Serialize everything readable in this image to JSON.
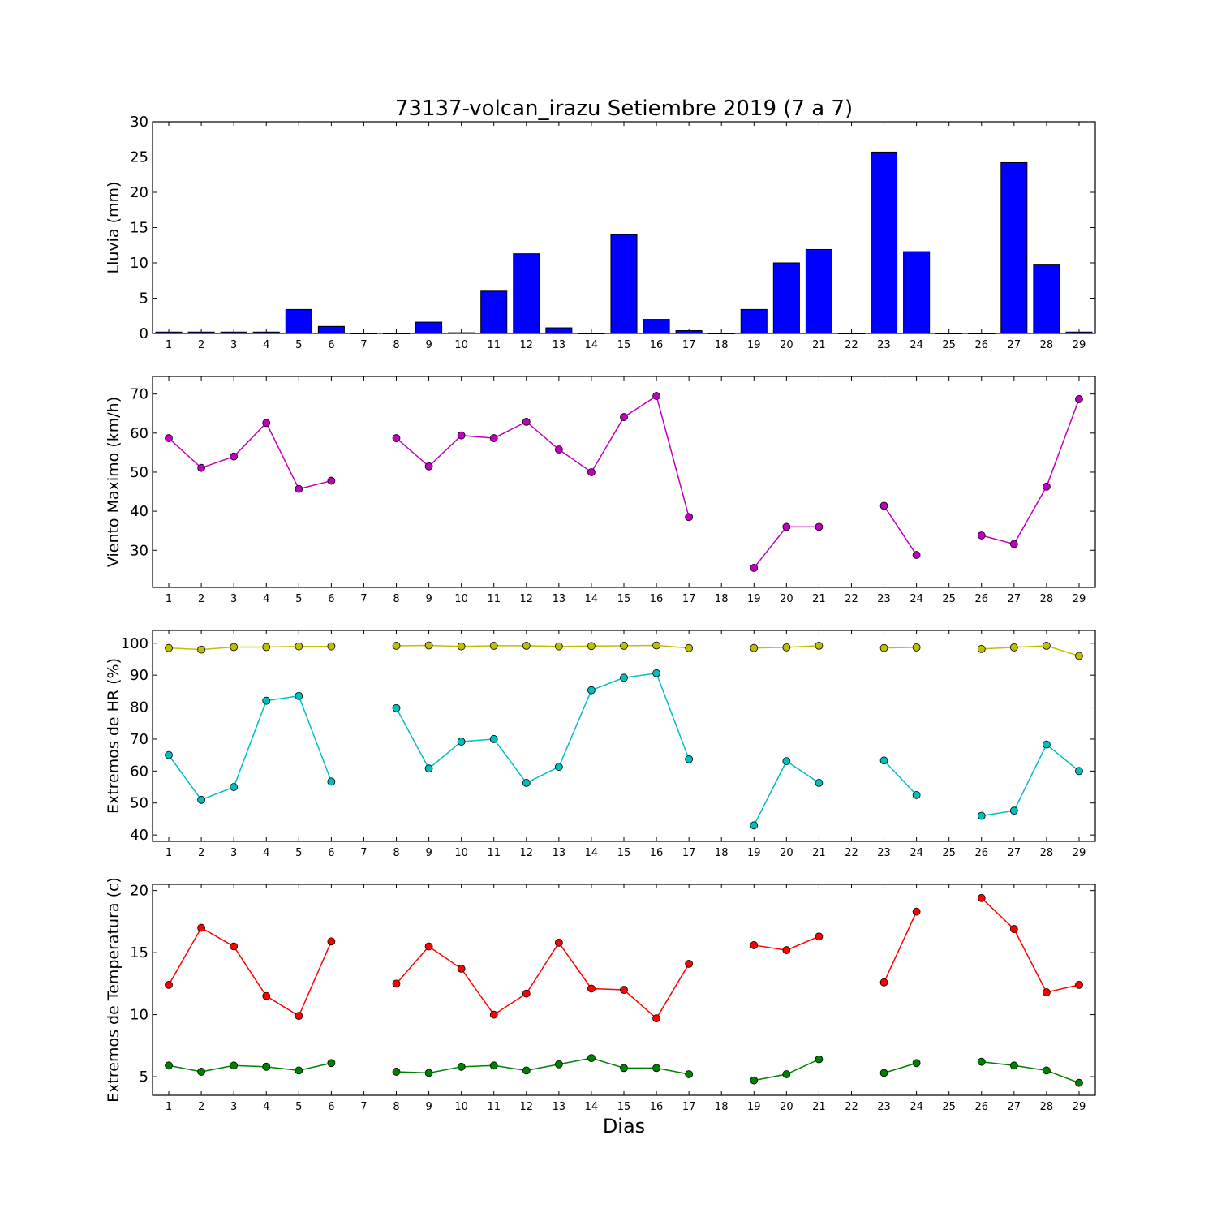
{
  "figure": {
    "title": "73137-volcan_irazu Setiembre 2019  (7 a 7)",
    "xlabel": "Dias"
  },
  "chart_data": [
    {
      "type": "bar",
      "ylabel": "Lluvia (mm)",
      "x": [
        1,
        2,
        3,
        4,
        5,
        6,
        7,
        8,
        9,
        10,
        11,
        12,
        13,
        14,
        15,
        16,
        17,
        18,
        19,
        20,
        21,
        22,
        23,
        24,
        25,
        26,
        27,
        28,
        29
      ],
      "values": [
        0.2,
        0.2,
        0.2,
        0.2,
        3.4,
        1.0,
        0,
        0,
        1.6,
        0.1,
        6.0,
        11.3,
        0.8,
        0,
        14.0,
        2.0,
        0.4,
        0,
        3.4,
        10.0,
        11.9,
        0,
        25.7,
        11.6,
        0,
        0,
        24.2,
        9.7,
        0.2
      ],
      "color": "#0000ff",
      "ylim": [
        0,
        30
      ],
      "yticks": [
        0,
        5,
        10,
        15,
        20,
        25,
        30
      ]
    },
    {
      "type": "line",
      "ylabel": "Viento Maximo (km/h)",
      "x": [
        1,
        2,
        3,
        4,
        5,
        6,
        7,
        8,
        9,
        10,
        11,
        12,
        13,
        14,
        15,
        16,
        17,
        18,
        19,
        20,
        21,
        22,
        23,
        24,
        25,
        26,
        27,
        28,
        29
      ],
      "series": [
        {
          "color": "#bf00bf",
          "values": [
            58.7,
            51.1,
            54.0,
            62.6,
            45.7,
            47.8,
            null,
            58.7,
            51.5,
            59.4,
            58.7,
            62.9,
            55.8,
            50.0,
            64.1,
            69.5,
            38.5,
            null,
            25.5,
            36.0,
            36.0,
            null,
            41.4,
            28.8,
            null,
            33.8,
            31.6,
            46.3,
            68.7
          ]
        }
      ],
      "ylim": [
        20.5,
        74.5
      ],
      "yticks": [
        30,
        40,
        50,
        60,
        70
      ]
    },
    {
      "type": "line",
      "ylabel": "Extremos de HR (%)",
      "x": [
        1,
        2,
        3,
        4,
        5,
        6,
        7,
        8,
        9,
        10,
        11,
        12,
        13,
        14,
        15,
        16,
        17,
        18,
        19,
        20,
        21,
        22,
        23,
        24,
        25,
        26,
        27,
        28,
        29
      ],
      "series": [
        {
          "color": "#bfbf00",
          "values": [
            98.5,
            98.0,
            98.8,
            98.8,
            99.0,
            99.0,
            null,
            99.2,
            99.3,
            99.0,
            99.2,
            99.2,
            99.0,
            99.1,
            99.2,
            99.3,
            98.5,
            null,
            98.5,
            98.7,
            99.2,
            null,
            98.5,
            98.7,
            null,
            98.2,
            98.7,
            99.2,
            96.0
          ]
        },
        {
          "color": "#00bfbf",
          "values": [
            65.0,
            51.0,
            55.0,
            82.0,
            83.5,
            56.7,
            null,
            79.7,
            60.8,
            69.2,
            70.0,
            56.3,
            61.3,
            85.3,
            89.2,
            90.6,
            63.7,
            null,
            43.0,
            63.1,
            56.3,
            null,
            63.3,
            52.5,
            null,
            46.0,
            47.6,
            68.3,
            60.0
          ]
        }
      ],
      "ylim": [
        38,
        104
      ],
      "yticks": [
        40,
        50,
        60,
        70,
        80,
        90,
        100
      ]
    },
    {
      "type": "line",
      "ylabel": "Extremos de Temperatura (c)",
      "x": [
        1,
        2,
        3,
        4,
        5,
        6,
        7,
        8,
        9,
        10,
        11,
        12,
        13,
        14,
        15,
        16,
        17,
        18,
        19,
        20,
        21,
        22,
        23,
        24,
        25,
        26,
        27,
        28,
        29
      ],
      "series": [
        {
          "color": "#ff0000",
          "values": [
            12.4,
            17.0,
            15.5,
            11.5,
            9.9,
            15.9,
            null,
            12.5,
            15.5,
            13.7,
            10.0,
            11.7,
            15.8,
            12.1,
            12.0,
            9.7,
            14.1,
            null,
            15.6,
            15.2,
            16.3,
            null,
            12.6,
            18.3,
            null,
            19.4,
            16.9,
            11.8,
            12.4
          ]
        },
        {
          "color": "#008000",
          "values": [
            5.9,
            5.4,
            5.9,
            5.8,
            5.5,
            6.1,
            null,
            5.4,
            5.3,
            5.8,
            5.9,
            5.5,
            6.0,
            6.5,
            5.7,
            5.7,
            5.2,
            null,
            4.7,
            5.2,
            6.4,
            null,
            5.3,
            6.1,
            null,
            6.2,
            5.9,
            5.5,
            4.5
          ]
        }
      ],
      "ylim": [
        3.5,
        20.5
      ],
      "yticks": [
        5,
        10,
        15,
        20
      ]
    }
  ]
}
